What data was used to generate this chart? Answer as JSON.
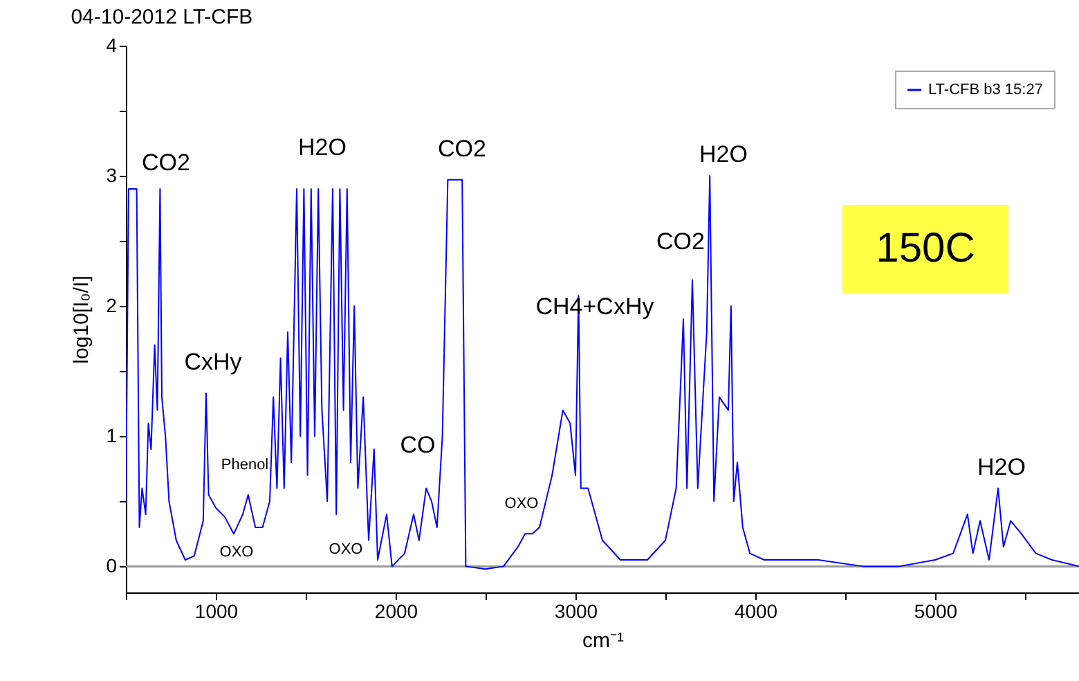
{
  "chart_data": {
    "type": "line",
    "title": "04-10-2012 LT-CFB",
    "xlabel": "cm⁻¹",
    "ylabel": "log10[I₀/I]",
    "xlim": [
      500,
      5800
    ],
    "ylim": [
      -0.2,
      4
    ],
    "xticks": [
      {
        "value": 500,
        "label": null
      },
      1000,
      {
        "value": 1500,
        "label": null
      },
      2000,
      {
        "value": 2500,
        "label": null
      },
      3000,
      {
        "value": 3500,
        "label": null
      },
      4000,
      {
        "value": 4500,
        "label": null
      },
      5000,
      {
        "value": 5500,
        "label": null
      }
    ],
    "yticks": [
      0,
      {
        "value": 0.5,
        "label": null
      },
      1,
      {
        "value": 1.5,
        "label": null
      },
      2,
      {
        "value": 2.5,
        "label": null
      },
      3,
      {
        "value": 3.5,
        "label": null
      },
      4
    ],
    "grid": false,
    "legend": "top right",
    "marker": "none",
    "line_style": "solid",
    "ref_lines": [
      {
        "axis": "y",
        "value": 0,
        "color": "#999999"
      }
    ],
    "annotations": [
      "CO2",
      "CxHy",
      "Phenol",
      "OXO",
      "H2O",
      "OXO",
      "CO",
      "CO2",
      "OXO",
      "CH4+CxHy",
      "CO2",
      "H2O",
      "H2O",
      "150C"
    ],
    "series": [
      {
        "name": "LT-CFB b3 15:27",
        "color": "#0000ff",
        "x": [
          500,
          515,
          560,
          575,
          590,
          610,
          625,
          640,
          660,
          675,
          690,
          700,
          720,
          740,
          780,
          830,
          880,
          930,
          946,
          960,
          980,
          1000,
          1050,
          1100,
          1150,
          1180,
          1220,
          1260,
          1300,
          1320,
          1340,
          1360,
          1380,
          1400,
          1420,
          1450,
          1470,
          1490,
          1510,
          1530,
          1550,
          1570,
          1590,
          1620,
          1650,
          1670,
          1690,
          1710,
          1730,
          1750,
          1770,
          1790,
          1820,
          1850,
          1880,
          1900,
          1950,
          1980,
          2050,
          2100,
          2130,
          2170,
          2200,
          2230,
          2260,
          2290,
          2370,
          2390,
          2500,
          2600,
          2680,
          2720,
          2760,
          2800,
          2870,
          2930,
          2970,
          3000,
          3017,
          3030,
          3070,
          3150,
          3250,
          3400,
          3500,
          3560,
          3600,
          3620,
          3650,
          3680,
          3730,
          3747,
          3770,
          3800,
          3850,
          3865,
          3880,
          3900,
          3930,
          3970,
          4050,
          4200,
          4350,
          4600,
          4800,
          5000,
          5100,
          5180,
          5210,
          5250,
          5300,
          5350,
          5380,
          5420,
          5480,
          5560,
          5650,
          5800
        ],
        "values": [
          0.5,
          2.9,
          2.9,
          0.3,
          0.6,
          0.4,
          1.1,
          0.9,
          1.7,
          1.2,
          2.9,
          1.3,
          1.0,
          0.5,
          0.2,
          0.05,
          0.08,
          0.35,
          1.33,
          0.55,
          0.5,
          0.45,
          0.38,
          0.25,
          0.4,
          0.55,
          0.3,
          0.3,
          0.5,
          1.3,
          0.6,
          1.6,
          0.6,
          1.8,
          0.8,
          2.9,
          1.0,
          2.9,
          0.7,
          2.9,
          1.0,
          2.9,
          1.2,
          0.5,
          2.9,
          0.4,
          2.9,
          1.2,
          2.9,
          0.8,
          2.0,
          0.6,
          1.3,
          0.2,
          0.9,
          0.05,
          0.4,
          0.0,
          0.1,
          0.4,
          0.2,
          0.6,
          0.5,
          0.3,
          1.0,
          2.97,
          2.97,
          0.0,
          -0.02,
          0.0,
          0.15,
          0.25,
          0.25,
          0.3,
          0.7,
          1.2,
          1.1,
          0.7,
          2.08,
          0.6,
          0.6,
          0.2,
          0.05,
          0.05,
          0.2,
          0.6,
          1.9,
          0.6,
          2.2,
          0.6,
          1.8,
          3.0,
          0.5,
          1.3,
          1.2,
          2.0,
          0.5,
          0.8,
          0.3,
          0.1,
          0.05,
          0.05,
          0.05,
          0.0,
          0.0,
          0.05,
          0.1,
          0.4,
          0.1,
          0.35,
          0.05,
          0.6,
          0.15,
          0.35,
          0.25,
          0.1,
          0.05,
          0.0
        ]
      }
    ]
  }
}
